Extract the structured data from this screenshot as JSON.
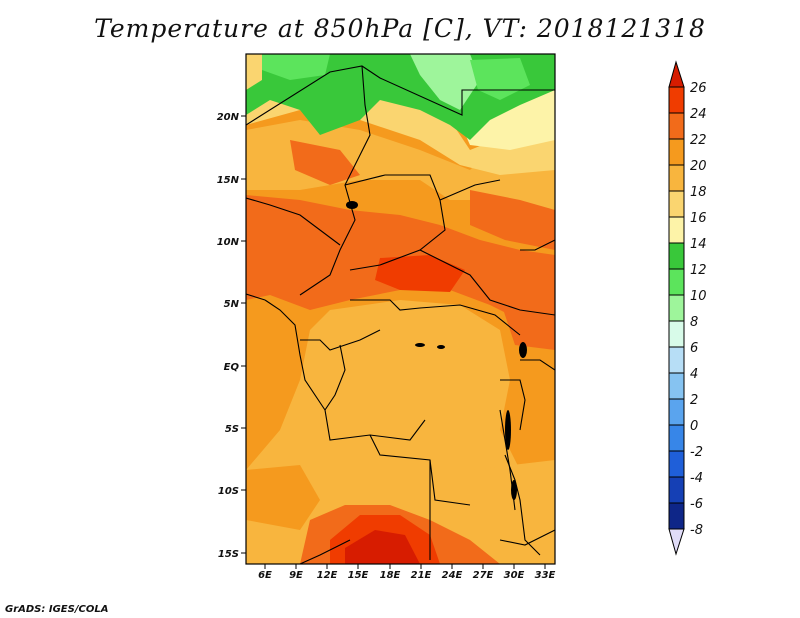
{
  "title": "Temperature at 850hPa [C], VT: 2018121318",
  "credit": "GrADS: IGES/COLA",
  "axes": {
    "lon_labels": [
      "6E",
      "9E",
      "12E",
      "15E",
      "18E",
      "21E",
      "24E",
      "27E",
      "30E",
      "33E"
    ],
    "lat_labels": [
      "20N",
      "15N",
      "10N",
      "5N",
      "EQ",
      "5S",
      "10S",
      "15S"
    ]
  },
  "colorbar": {
    "levels": [
      "26",
      "24",
      "22",
      "20",
      "18",
      "16",
      "14",
      "12",
      "10",
      "8",
      "6",
      "4",
      "2",
      "0",
      "-2",
      "-4",
      "-6",
      "-8"
    ],
    "colors": [
      "#d71c00",
      "#f03c00",
      "#f26b1a",
      "#f59a1e",
      "#f8b53e",
      "#fad570",
      "#fdf3a8",
      "#39c83a",
      "#5ce45c",
      "#9ef59b",
      "#d8fbe9",
      "#b7def6",
      "#86c3f1",
      "#5aa4ee",
      "#3786e8",
      "#1f5fd9",
      "#1540b5",
      "#0e2688",
      "#0a1463"
    ],
    "lower_arrow_color": "#e0dcf8"
  },
  "colors": {
    "base_field": "#f59a1e",
    "north_green": "#4cd24c",
    "north_light_green": "#9ef59b",
    "hot_core": "#d71c00"
  }
}
